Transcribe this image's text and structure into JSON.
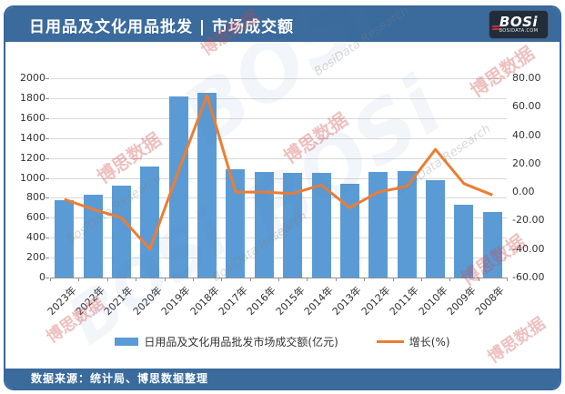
{
  "header": {
    "title": "日用品及文化用品批发 | 市场成交额",
    "logo": {
      "brand": "BOSi",
      "domain": "BOSIDATA.COM"
    }
  },
  "footer": {
    "source": "数据来源：统计局、博思数据整理"
  },
  "watermarks": {
    "cn": "博思数据",
    "en": "BosiData Research",
    "brand": "BOSi"
  },
  "colors": {
    "frame_blue": "#3a6b9c",
    "bar_blue": "#5b9bd5",
    "line_orange": "#ed7d31",
    "grid_gray": "#d9d9d9"
  },
  "chart_data": {
    "type": "bar",
    "combo": "bar+line",
    "categories": [
      "2023年",
      "2022年",
      "2021年",
      "2020年",
      "2019年",
      "2018年",
      "2017年",
      "2016年",
      "2015年",
      "2014年",
      "2013年",
      "2012年",
      "2011年",
      "2010年",
      "2009年",
      "2008年"
    ],
    "series": [
      {
        "name": "日用品及文化用品批发市场成交额(亿元)",
        "type": "bar",
        "axis": "left",
        "color": "#5b9bd5",
        "values": [
          780,
          830,
          920,
          1110,
          1820,
          1855,
          1085,
          1055,
          1050,
          1050,
          945,
          1055,
          1065,
          980,
          730,
          655
        ]
      },
      {
        "name": "增长(%)",
        "type": "line",
        "axis": "right",
        "color": "#ed7d31",
        "values": [
          -5,
          -12,
          -18,
          -40,
          15,
          68,
          0,
          0,
          -1,
          5,
          -11,
          0,
          4,
          30,
          6,
          -2
        ]
      }
    ],
    "left_axis": {
      "min": 0,
      "max": 2000,
      "step": 200,
      "tick_labels": [
        "0",
        "200",
        "400",
        "600",
        "800",
        "1000",
        "1200",
        "1400",
        "1600",
        "1800",
        "2000"
      ]
    },
    "right_axis": {
      "min": -60,
      "max": 80,
      "step": 20,
      "tick_labels": [
        "-60.00",
        "-40.00",
        "-20.00",
        "0.00",
        "20.00",
        "40.00",
        "60.00",
        "80.00"
      ]
    },
    "legend_position": "bottom",
    "grid": true,
    "title": "日用品及文化用品批发 | 市场成交额"
  }
}
